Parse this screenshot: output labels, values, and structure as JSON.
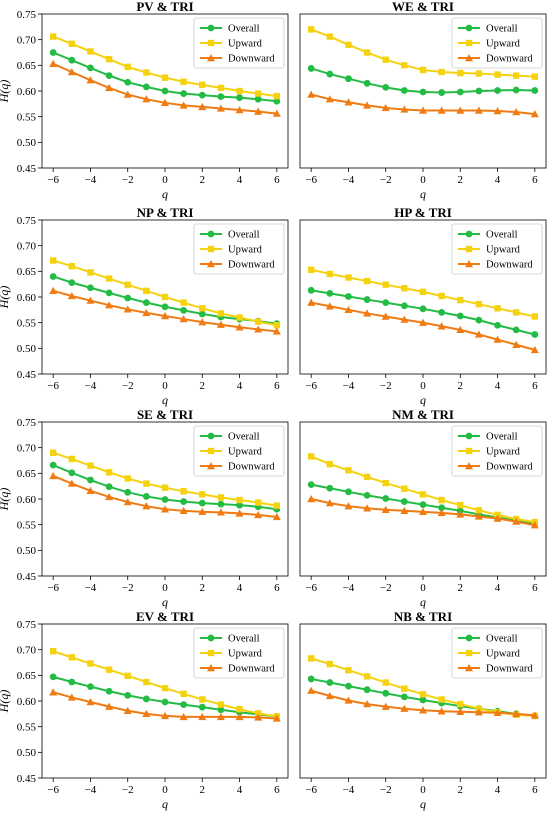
{
  "figure": {
    "colors": {
      "Overall": "#22bb44",
      "Upward": "#f5d20f",
      "Downward": "#f07b12"
    },
    "markers": {
      "Overall": "circle",
      "Upward": "square",
      "Downward": "triangle"
    }
  },
  "chart_data": [
    {
      "type": "line",
      "title": "PV & TRI",
      "xlabel": "q",
      "ylabel": "H(q)",
      "xlim": [
        -6.6,
        6.6
      ],
      "ylim": [
        0.45,
        0.75
      ],
      "xticks": [
        -6,
        -4,
        -2,
        0,
        2,
        4,
        6
      ],
      "xtick_labels": [
        "−6",
        "−4",
        "−2",
        "0",
        "2",
        "4",
        "6"
      ],
      "yticks": [
        0.45,
        0.5,
        0.55,
        0.6,
        0.65,
        0.7,
        0.75
      ],
      "ytick_labels": [
        "0.45",
        "0.50",
        "0.55",
        "0.60",
        "0.65",
        "0.70",
        "0.75"
      ],
      "legend": "top-right",
      "grid": false,
      "x": [
        -6,
        -5,
        -4,
        -3,
        -2,
        -1,
        0,
        1,
        2,
        3,
        4,
        5,
        6
      ],
      "series": [
        {
          "name": "Overall",
          "values": [
            0.675,
            0.66,
            0.645,
            0.63,
            0.617,
            0.608,
            0.6,
            0.595,
            0.592,
            0.589,
            0.587,
            0.584,
            0.58
          ]
        },
        {
          "name": "Upward",
          "values": [
            0.706,
            0.692,
            0.677,
            0.662,
            0.647,
            0.636,
            0.626,
            0.618,
            0.612,
            0.606,
            0.6,
            0.595,
            0.59
          ]
        },
        {
          "name": "Downward",
          "values": [
            0.653,
            0.637,
            0.621,
            0.606,
            0.593,
            0.584,
            0.577,
            0.572,
            0.569,
            0.566,
            0.563,
            0.56,
            0.556
          ]
        }
      ]
    },
    {
      "type": "line",
      "title": "WE & TRI",
      "xlabel": "q",
      "ylabel": "",
      "xlim": [
        -6.6,
        6.6
      ],
      "ylim": [
        0.45,
        0.75
      ],
      "xticks": [
        -6,
        -4,
        -2,
        0,
        2,
        4,
        6
      ],
      "xtick_labels": [
        "−6",
        "−4",
        "−2",
        "0",
        "2",
        "4",
        "6"
      ],
      "yticks": [],
      "ytick_labels": [],
      "legend": "top-right",
      "grid": false,
      "x": [
        -6,
        -5,
        -4,
        -3,
        -2,
        -1,
        0,
        1,
        2,
        3,
        4,
        5,
        6
      ],
      "series": [
        {
          "name": "Overall",
          "values": [
            0.644,
            0.633,
            0.624,
            0.615,
            0.607,
            0.601,
            0.598,
            0.597,
            0.598,
            0.6,
            0.601,
            0.602,
            0.601
          ]
        },
        {
          "name": "Upward",
          "values": [
            0.72,
            0.706,
            0.69,
            0.675,
            0.661,
            0.65,
            0.641,
            0.637,
            0.635,
            0.634,
            0.632,
            0.63,
            0.628
          ]
        },
        {
          "name": "Downward",
          "values": [
            0.593,
            0.584,
            0.578,
            0.572,
            0.567,
            0.564,
            0.562,
            0.562,
            0.562,
            0.562,
            0.561,
            0.559,
            0.555
          ]
        }
      ]
    },
    {
      "type": "line",
      "title": "NP & TRI",
      "xlabel": "q",
      "ylabel": "H(q)",
      "xlim": [
        -6.6,
        6.6
      ],
      "ylim": [
        0.45,
        0.75
      ],
      "xticks": [
        -6,
        -4,
        -2,
        0,
        2,
        4,
        6
      ],
      "xtick_labels": [
        "−6",
        "−4",
        "−2",
        "0",
        "2",
        "4",
        "6"
      ],
      "yticks": [
        0.45,
        0.5,
        0.55,
        0.6,
        0.65,
        0.7,
        0.75
      ],
      "ytick_labels": [
        "0.45",
        "0.50",
        "0.55",
        "0.60",
        "0.65",
        "0.70",
        "0.75"
      ],
      "legend": "top-right",
      "grid": false,
      "x": [
        -6,
        -5,
        -4,
        -3,
        -2,
        -1,
        0,
        1,
        2,
        3,
        4,
        5,
        6
      ],
      "series": [
        {
          "name": "Overall",
          "values": [
            0.64,
            0.628,
            0.618,
            0.608,
            0.598,
            0.589,
            0.581,
            0.574,
            0.567,
            0.561,
            0.557,
            0.553,
            0.548
          ]
        },
        {
          "name": "Upward",
          "values": [
            0.671,
            0.66,
            0.648,
            0.636,
            0.624,
            0.612,
            0.6,
            0.589,
            0.578,
            0.568,
            0.56,
            0.552,
            0.545
          ]
        },
        {
          "name": "Downward",
          "values": [
            0.612,
            0.602,
            0.593,
            0.584,
            0.576,
            0.569,
            0.563,
            0.557,
            0.551,
            0.546,
            0.541,
            0.537,
            0.533
          ]
        }
      ]
    },
    {
      "type": "line",
      "title": "HP & TRI",
      "xlabel": "q",
      "ylabel": "",
      "xlim": [
        -6.6,
        6.6
      ],
      "ylim": [
        0.45,
        0.75
      ],
      "xticks": [
        -6,
        -4,
        -2,
        0,
        2,
        4,
        6
      ],
      "xtick_labels": [
        "−6",
        "−4",
        "−2",
        "0",
        "2",
        "4",
        "6"
      ],
      "yticks": [],
      "ytick_labels": [],
      "legend": "top-right",
      "grid": false,
      "x": [
        -6,
        -5,
        -4,
        -3,
        -2,
        -1,
        0,
        1,
        2,
        3,
        4,
        5,
        6
      ],
      "series": [
        {
          "name": "Overall",
          "values": [
            0.613,
            0.607,
            0.601,
            0.595,
            0.589,
            0.583,
            0.577,
            0.57,
            0.563,
            0.555,
            0.545,
            0.536,
            0.527
          ]
        },
        {
          "name": "Upward",
          "values": [
            0.653,
            0.645,
            0.638,
            0.631,
            0.624,
            0.617,
            0.61,
            0.602,
            0.594,
            0.586,
            0.578,
            0.57,
            0.562
          ]
        },
        {
          "name": "Downward",
          "values": [
            0.589,
            0.582,
            0.575,
            0.568,
            0.562,
            0.556,
            0.55,
            0.543,
            0.536,
            0.527,
            0.517,
            0.507,
            0.497
          ]
        }
      ]
    },
    {
      "type": "line",
      "title": "SE & TRI",
      "xlabel": "q",
      "ylabel": "H(q)",
      "xlim": [
        -6.6,
        6.6
      ],
      "ylim": [
        0.45,
        0.75
      ],
      "xticks": [
        -6,
        -4,
        -2,
        0,
        2,
        4,
        6
      ],
      "xtick_labels": [
        "−6",
        "−4",
        "−2",
        "0",
        "2",
        "4",
        "6"
      ],
      "yticks": [
        0.45,
        0.5,
        0.55,
        0.6,
        0.65,
        0.7,
        0.75
      ],
      "ytick_labels": [
        "0.45",
        "0.50",
        "0.55",
        "0.60",
        "0.65",
        "0.70",
        "0.75"
      ],
      "legend": "top-right",
      "grid": false,
      "x": [
        -6,
        -5,
        -4,
        -3,
        -2,
        -1,
        0,
        1,
        2,
        3,
        4,
        5,
        6
      ],
      "series": [
        {
          "name": "Overall",
          "values": [
            0.666,
            0.651,
            0.637,
            0.624,
            0.613,
            0.605,
            0.599,
            0.595,
            0.592,
            0.59,
            0.588,
            0.585,
            0.58
          ]
        },
        {
          "name": "Upward",
          "values": [
            0.69,
            0.678,
            0.665,
            0.652,
            0.64,
            0.63,
            0.622,
            0.615,
            0.609,
            0.603,
            0.598,
            0.593,
            0.587
          ]
        },
        {
          "name": "Downward",
          "values": [
            0.645,
            0.63,
            0.616,
            0.604,
            0.594,
            0.586,
            0.58,
            0.577,
            0.575,
            0.574,
            0.572,
            0.569,
            0.565
          ]
        }
      ]
    },
    {
      "type": "line",
      "title": "NM & TRI",
      "xlabel": "q",
      "ylabel": "",
      "xlim": [
        -6.6,
        6.6
      ],
      "ylim": [
        0.45,
        0.75
      ],
      "xticks": [
        -6,
        -4,
        -2,
        0,
        2,
        4,
        6
      ],
      "xtick_labels": [
        "−6",
        "−4",
        "−2",
        "0",
        "2",
        "4",
        "6"
      ],
      "yticks": [],
      "ytick_labels": [],
      "legend": "top-right",
      "grid": false,
      "x": [
        -6,
        -5,
        -4,
        -3,
        -2,
        -1,
        0,
        1,
        2,
        3,
        4,
        5,
        6
      ],
      "series": [
        {
          "name": "Overall",
          "values": [
            0.628,
            0.621,
            0.614,
            0.607,
            0.601,
            0.595,
            0.589,
            0.583,
            0.577,
            0.57,
            0.564,
            0.558,
            0.552
          ]
        },
        {
          "name": "Upward",
          "values": [
            0.683,
            0.668,
            0.656,
            0.643,
            0.631,
            0.62,
            0.609,
            0.598,
            0.588,
            0.578,
            0.569,
            0.561,
            0.555
          ]
        },
        {
          "name": "Downward",
          "values": [
            0.6,
            0.592,
            0.586,
            0.582,
            0.579,
            0.577,
            0.575,
            0.573,
            0.57,
            0.566,
            0.562,
            0.556,
            0.549
          ]
        }
      ]
    },
    {
      "type": "line",
      "title": "EV & TRI",
      "xlabel": "q",
      "ylabel": "H(q)",
      "xlim": [
        -6.6,
        6.6
      ],
      "ylim": [
        0.45,
        0.75
      ],
      "xticks": [
        -6,
        -4,
        -2,
        0,
        2,
        4,
        6
      ],
      "xtick_labels": [
        "−6",
        "−4",
        "−2",
        "0",
        "2",
        "4",
        "6"
      ],
      "yticks": [
        0.45,
        0.5,
        0.55,
        0.6,
        0.65,
        0.7,
        0.75
      ],
      "ytick_labels": [
        "0.45",
        "0.50",
        "0.55",
        "0.60",
        "0.65",
        "0.70",
        "0.75"
      ],
      "legend": "top-right",
      "grid": false,
      "x": [
        -6,
        -5,
        -4,
        -3,
        -2,
        -1,
        0,
        1,
        2,
        3,
        4,
        5,
        6
      ],
      "series": [
        {
          "name": "Overall",
          "values": [
            0.647,
            0.637,
            0.628,
            0.619,
            0.611,
            0.604,
            0.598,
            0.593,
            0.588,
            0.583,
            0.578,
            0.574,
            0.57
          ]
        },
        {
          "name": "Upward",
          "values": [
            0.697,
            0.685,
            0.673,
            0.661,
            0.649,
            0.637,
            0.625,
            0.614,
            0.603,
            0.593,
            0.584,
            0.576,
            0.57
          ]
        },
        {
          "name": "Downward",
          "values": [
            0.617,
            0.607,
            0.598,
            0.589,
            0.581,
            0.575,
            0.571,
            0.569,
            0.569,
            0.569,
            0.569,
            0.568,
            0.566
          ]
        }
      ]
    },
    {
      "type": "line",
      "title": "NB & TRI",
      "xlabel": "q",
      "ylabel": "",
      "xlim": [
        -6.6,
        6.6
      ],
      "ylim": [
        0.45,
        0.75
      ],
      "xticks": [
        -6,
        -4,
        -2,
        0,
        2,
        4,
        6
      ],
      "xtick_labels": [
        "−6",
        "−4",
        "−2",
        "0",
        "2",
        "4",
        "6"
      ],
      "yticks": [],
      "ytick_labels": [],
      "legend": "top-right",
      "grid": false,
      "x": [
        -6,
        -5,
        -4,
        -3,
        -2,
        -1,
        0,
        1,
        2,
        3,
        4,
        5,
        6
      ],
      "series": [
        {
          "name": "Overall",
          "values": [
            0.643,
            0.636,
            0.629,
            0.622,
            0.615,
            0.608,
            0.602,
            0.596,
            0.59,
            0.585,
            0.58,
            0.575,
            0.571
          ]
        },
        {
          "name": "Upward",
          "values": [
            0.683,
            0.672,
            0.66,
            0.648,
            0.636,
            0.624,
            0.613,
            0.603,
            0.594,
            0.585,
            0.578,
            0.573,
            0.571
          ]
        },
        {
          "name": "Downward",
          "values": [
            0.62,
            0.61,
            0.601,
            0.594,
            0.589,
            0.585,
            0.582,
            0.58,
            0.579,
            0.578,
            0.577,
            0.575,
            0.572
          ]
        }
      ]
    }
  ]
}
